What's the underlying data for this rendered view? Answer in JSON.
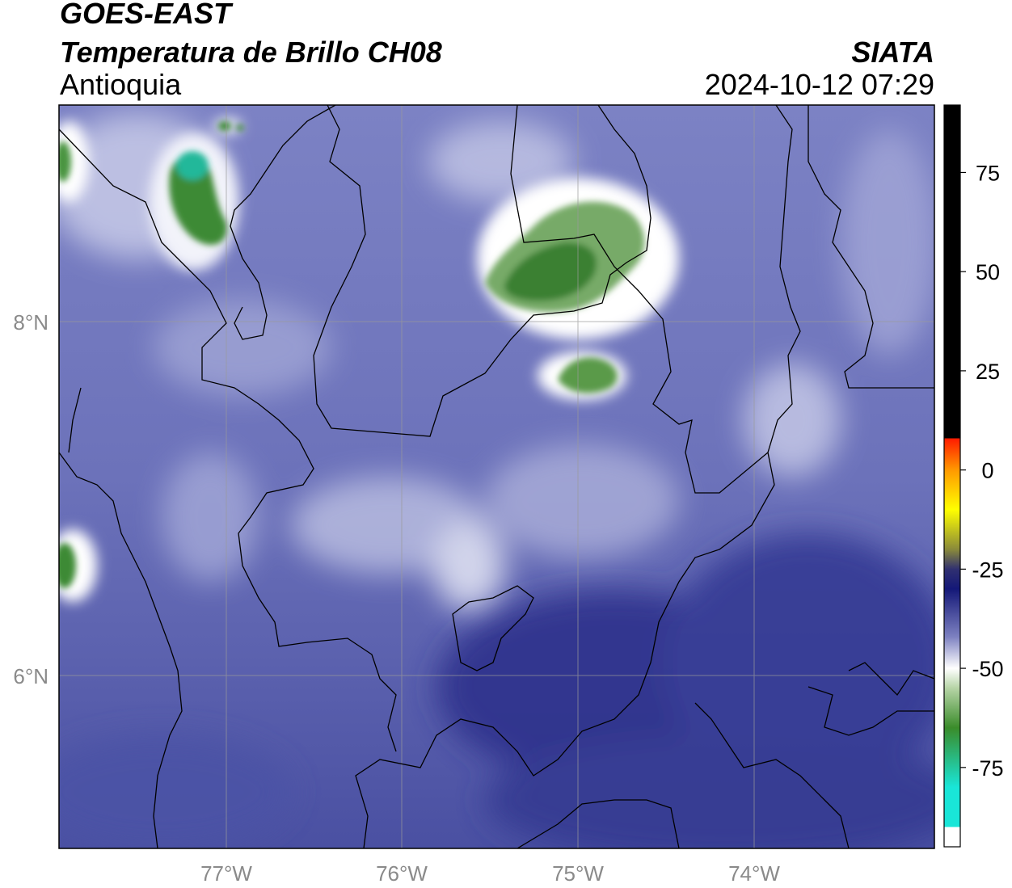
{
  "header": {
    "satellite": "GOES-EAST",
    "product": "Temperatura de Brillo CH08",
    "region": "Antioquia",
    "agency": "SIATA",
    "timestamp": "2024-10-12 07:29"
  },
  "map_axes": {
    "lon_ticks": [
      "77°W",
      "76°W",
      "75°W",
      "74°W"
    ],
    "lat_ticks": [
      "8°N",
      "6°N"
    ],
    "lon_range": [
      -77.95,
      -72.97
    ],
    "lat_range": [
      5.03,
      9.23
    ]
  },
  "colorbar": {
    "ticks": [
      "75",
      "50",
      "25",
      "0",
      "-25",
      "-50",
      "-75"
    ],
    "range": [
      -95,
      92
    ],
    "colors": {
      "cold_min": "#ffffff",
      "cyan": "#19e6d8",
      "green": "#3a8c2a",
      "white": "#ffffff",
      "navy": "#141878",
      "yellow": "#ffff00",
      "orange": "#ff9900",
      "red": "#ff1a00",
      "warm_max": "#000000"
    }
  },
  "colors": {
    "background_field": "#5a60ae",
    "border_lines": "#000000",
    "gridlines": "#9a9a9a",
    "tick_text": "#8a8a8a"
  }
}
